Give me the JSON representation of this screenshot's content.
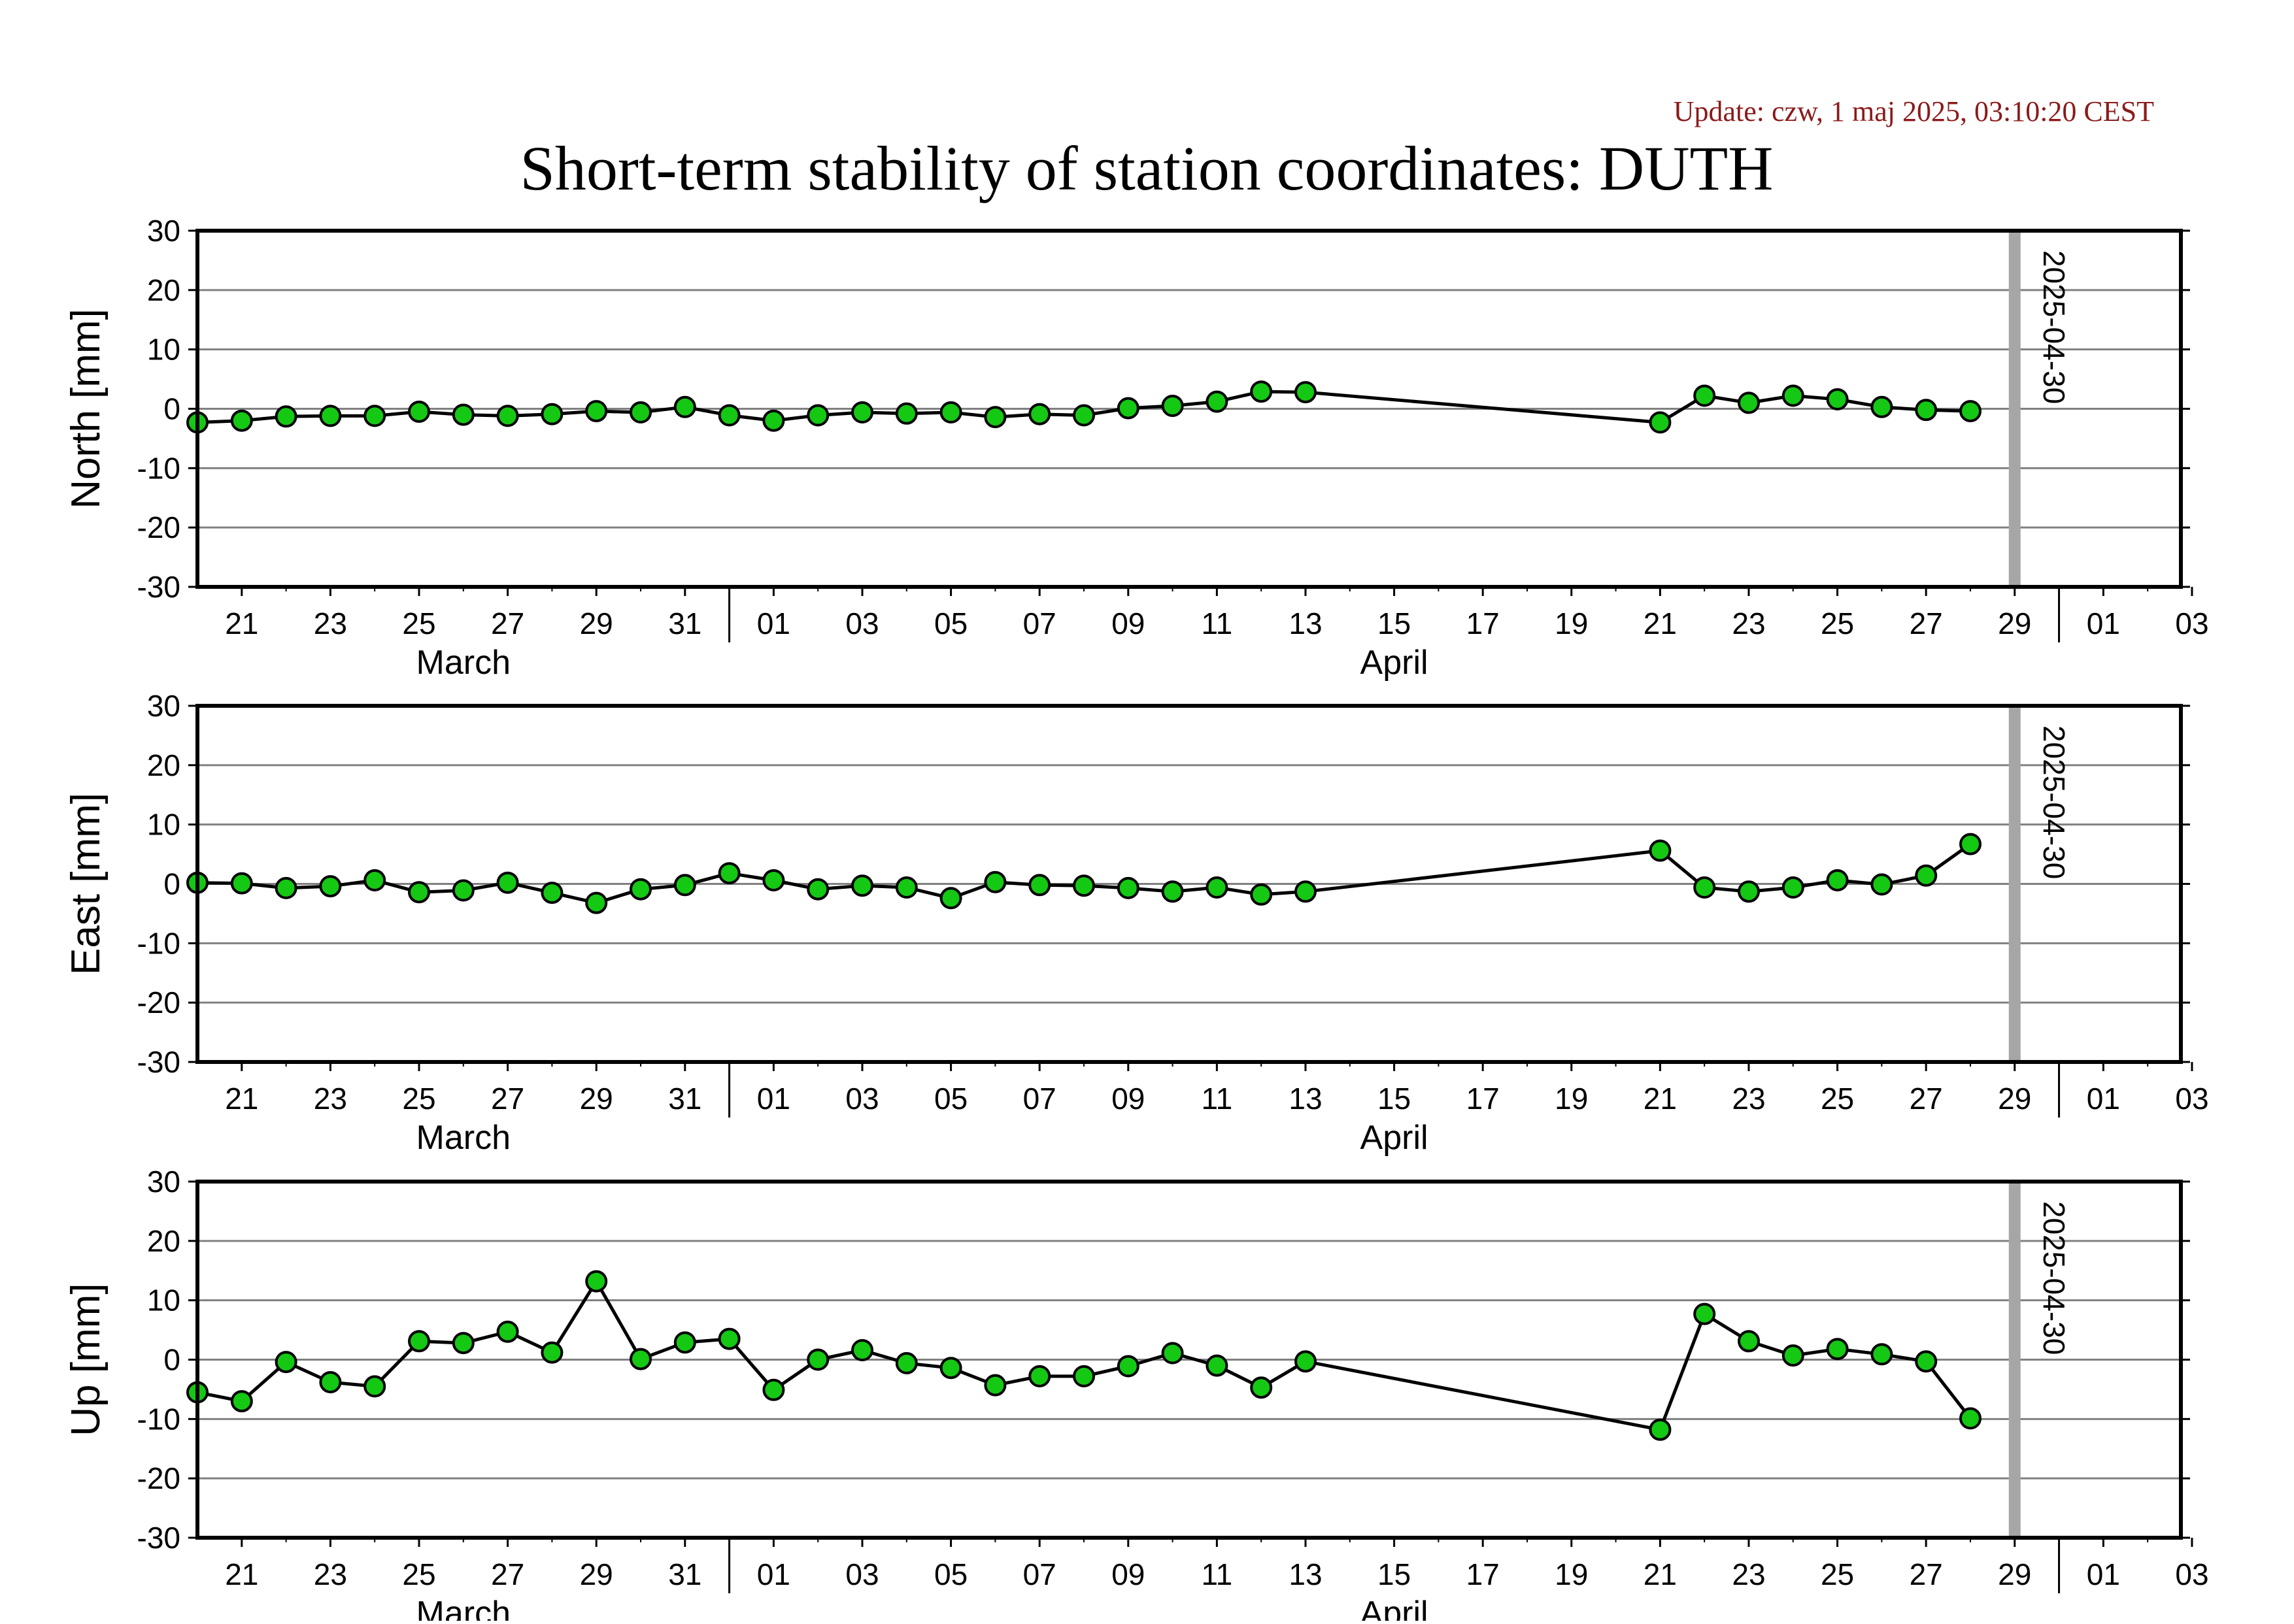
{
  "header": {
    "update": "Update: czw, 1 maj 2025, 03:10:20 CEST",
    "title": "Short-term stability of station coordinates: DUTH"
  },
  "colors": {
    "marker_fill": "#14c814",
    "marker_stroke": "#000000",
    "line": "#000000",
    "grid": "#808080",
    "today_line": "#a6a6a6",
    "update_text": "#8b1a1a"
  },
  "chart_data": [
    {
      "type": "line",
      "panel": "north",
      "ylabel": "North [mm]",
      "ylim": [
        -30,
        30
      ],
      "yticks": [
        30,
        20,
        10,
        0,
        -10,
        -20,
        -30
      ],
      "xlim": [
        "2025-03-20",
        "2025-05-03T18:00"
      ],
      "xticks": [
        "21",
        "23",
        "25",
        "27",
        "29",
        "31",
        "01",
        "03",
        "05",
        "07",
        "09",
        "11",
        "13",
        "15",
        "17",
        "19",
        "21",
        "23",
        "25",
        "27",
        "29",
        "01",
        "03"
      ],
      "month_labels": [
        "March",
        "April"
      ],
      "today_label": "2025-04-30",
      "grid": true,
      "x": [
        "2025-03-20",
        "2025-03-21",
        "2025-03-22",
        "2025-03-23",
        "2025-03-24",
        "2025-03-25",
        "2025-03-26",
        "2025-03-27",
        "2025-03-28",
        "2025-03-29",
        "2025-03-30",
        "2025-03-31",
        "2025-04-01",
        "2025-04-02",
        "2025-04-03",
        "2025-04-04",
        "2025-04-05",
        "2025-04-06",
        "2025-04-07",
        "2025-04-08",
        "2025-04-09",
        "2025-04-10",
        "2025-04-11",
        "2025-04-12",
        "2025-04-13",
        "2025-04-14",
        "2025-04-22",
        "2025-04-23",
        "2025-04-24",
        "2025-04-25",
        "2025-04-26",
        "2025-04-27",
        "2025-04-28",
        "2025-04-29"
      ],
      "y": [
        -2.3,
        -2.0,
        -1.3,
        -1.2,
        -1.2,
        -0.5,
        -1.0,
        -1.2,
        -0.9,
        -0.4,
        -0.6,
        0.3,
        -1.1,
        -2.0,
        -1.1,
        -0.6,
        -0.8,
        -0.6,
        -1.4,
        -0.9,
        -1.1,
        0.1,
        0.5,
        1.2,
        2.9,
        2.8,
        -2.3,
        2.2,
        1.0,
        2.2,
        1.6,
        0.3,
        -0.2,
        -0.4
      ]
    },
    {
      "type": "line",
      "panel": "east",
      "ylabel": "East [mm]",
      "ylim": [
        -30,
        30
      ],
      "yticks": [
        30,
        20,
        10,
        0,
        -10,
        -20,
        -30
      ],
      "xlim": [
        "2025-03-20",
        "2025-05-03T18:00"
      ],
      "xticks": [
        "21",
        "23",
        "25",
        "27",
        "29",
        "31",
        "01",
        "03",
        "05",
        "07",
        "09",
        "11",
        "13",
        "15",
        "17",
        "19",
        "21",
        "23",
        "25",
        "27",
        "29",
        "01",
        "03"
      ],
      "month_labels": [
        "March",
        "April"
      ],
      "today_label": "2025-04-30",
      "grid": true,
      "x": [
        "2025-03-20",
        "2025-03-21",
        "2025-03-22",
        "2025-03-23",
        "2025-03-24",
        "2025-03-25",
        "2025-03-26",
        "2025-03-27",
        "2025-03-28",
        "2025-03-29",
        "2025-03-30",
        "2025-03-31",
        "2025-04-01",
        "2025-04-02",
        "2025-04-03",
        "2025-04-04",
        "2025-04-05",
        "2025-04-06",
        "2025-04-07",
        "2025-04-08",
        "2025-04-09",
        "2025-04-10",
        "2025-04-11",
        "2025-04-12",
        "2025-04-13",
        "2025-04-14",
        "2025-04-22",
        "2025-04-23",
        "2025-04-24",
        "2025-04-25",
        "2025-04-26",
        "2025-04-27",
        "2025-04-28",
        "2025-04-29"
      ],
      "y": [
        0.2,
        0.1,
        -0.7,
        -0.4,
        0.6,
        -1.4,
        -1.1,
        0.2,
        -1.5,
        -3.2,
        -0.9,
        -0.2,
        1.8,
        0.6,
        -0.9,
        -0.3,
        -0.6,
        -2.4,
        0.3,
        -0.2,
        -0.3,
        -0.7,
        -1.3,
        -0.6,
        -1.8,
        -1.3,
        5.6,
        -0.6,
        -1.3,
        -0.6,
        0.6,
        -0.1,
        1.4,
        6.7
      ]
    },
    {
      "type": "line",
      "panel": "up",
      "ylabel": "Up [mm]",
      "ylim": [
        -30,
        30
      ],
      "yticks": [
        30,
        20,
        10,
        0,
        -10,
        -20,
        -30
      ],
      "xlim": [
        "2025-03-20",
        "2025-05-03T18:00"
      ],
      "xticks": [
        "21",
        "23",
        "25",
        "27",
        "29",
        "31",
        "01",
        "03",
        "05",
        "07",
        "09",
        "11",
        "13",
        "15",
        "17",
        "19",
        "21",
        "23",
        "25",
        "27",
        "29",
        "01",
        "03"
      ],
      "month_labels": [
        "March",
        "April"
      ],
      "today_label": "2025-04-30",
      "grid": true,
      "x": [
        "2025-03-20",
        "2025-03-21",
        "2025-03-22",
        "2025-03-23",
        "2025-03-24",
        "2025-03-25",
        "2025-03-26",
        "2025-03-27",
        "2025-03-28",
        "2025-03-29",
        "2025-03-30",
        "2025-03-31",
        "2025-04-01",
        "2025-04-02",
        "2025-04-03",
        "2025-04-04",
        "2025-04-05",
        "2025-04-06",
        "2025-04-07",
        "2025-04-08",
        "2025-04-09",
        "2025-04-10",
        "2025-04-11",
        "2025-04-12",
        "2025-04-13",
        "2025-04-14",
        "2025-04-22",
        "2025-04-23",
        "2025-04-24",
        "2025-04-25",
        "2025-04-26",
        "2025-04-27",
        "2025-04-28",
        "2025-04-29"
      ],
      "y": [
        -5.5,
        -7.0,
        -0.4,
        -3.8,
        -4.5,
        3.1,
        2.8,
        4.7,
        1.2,
        13.2,
        0.1,
        2.9,
        3.5,
        -5.1,
        0.0,
        1.6,
        -0.6,
        -1.4,
        -4.3,
        -2.8,
        -2.8,
        -1.1,
        1.1,
        -1.0,
        -4.7,
        -0.3,
        -11.8,
        7.7,
        3.1,
        0.7,
        1.8,
        0.9,
        -0.3,
        -9.9
      ]
    }
  ]
}
